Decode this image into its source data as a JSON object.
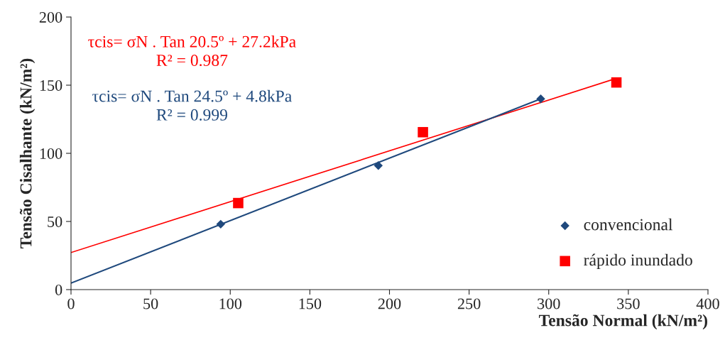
{
  "chart_data": {
    "type": "scatter",
    "xlabel": "Tensão Normal (kN/m²)",
    "ylabel": "Tensão Cisalhante (kN/m²)",
    "xlim": [
      0,
      400
    ],
    "xticks": [
      0,
      50,
      100,
      150,
      200,
      250,
      300,
      350,
      400
    ],
    "ylim": [
      0,
      200
    ],
    "yticks": [
      0,
      50,
      100,
      150,
      200
    ],
    "grid": false,
    "legend": "right",
    "annotations": [
      "τcis= σN . Tan 20.5º + 27.2kPa\nR² = 0.987",
      "τcis= σN . Tan 24.5º + 4.8kPa\nR² = 0.999"
    ],
    "series": [
      {
        "name": "convencional",
        "color": "#1f497d",
        "marker": "diamond",
        "x": [
          94,
          193,
          295
        ],
        "values": [
          48,
          91,
          140
        ]
      },
      {
        "name": "rápido inundado",
        "color": "#ff0000",
        "marker": "square",
        "x": [
          105,
          221,
          342.5
        ],
        "values": [
          63.5,
          115.5,
          152
        ]
      },
      {
        "type": "line",
        "color": "#ff0000",
        "x": [
          0,
          342.5
        ],
        "values": [
          27.2,
          155
        ],
        "marker": "none"
      },
      {
        "type": "line",
        "color": "#1f497d",
        "x": [
          0,
          295
        ],
        "values": [
          4.8,
          140
        ],
        "marker": "none"
      }
    ]
  }
}
